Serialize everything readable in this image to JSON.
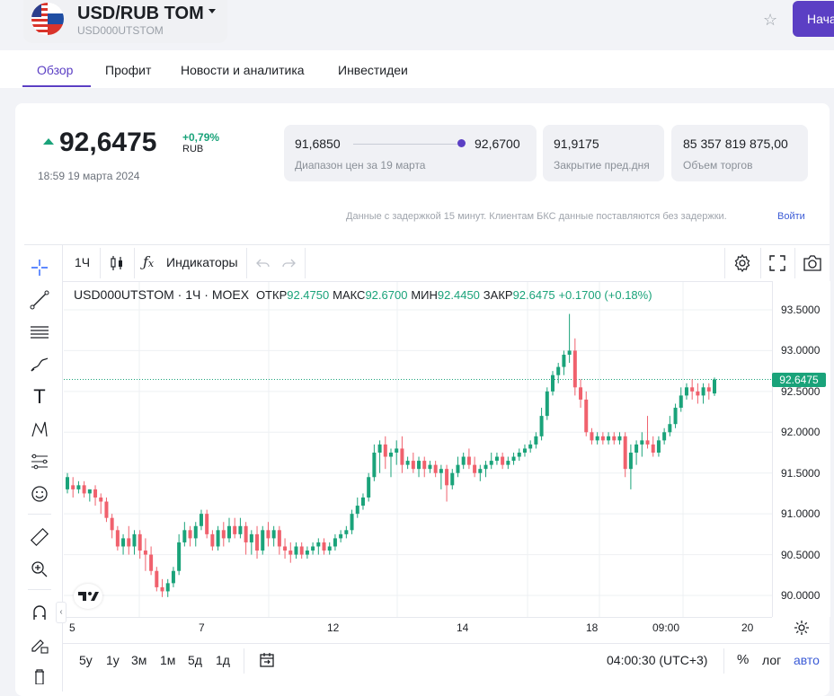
{
  "header": {
    "ticker": "USD/RUB TOM",
    "code": "USD000UTSTOM",
    "start_button": "Начать"
  },
  "tabs": [
    "Обзор",
    "Профит",
    "Новости и аналитика",
    "Инвестидеи"
  ],
  "quote": {
    "price": "92,6475",
    "change": "+0,79%",
    "currency": "RUB",
    "time": "18:59 19 марта 2024",
    "range_low": "91,6850",
    "range_high": "92,6700",
    "range_label": "Диапазон цен за 19 марта",
    "prev_close": "91,9175",
    "prev_close_label": "Закрытие пред.дня",
    "volume": "85 357 819 875,00",
    "volume_label": "Объем торгов"
  },
  "delay_notice": "Данные с задержкой 15 минут. Клиентам БКС данные поставляются без задержки.",
  "delay_link": "Войти",
  "chart_toolbar": {
    "interval": "1Ч",
    "indicators": "Индикаторы"
  },
  "legend": {
    "symbol": "USD000UTSTOM",
    "interval": "1Ч",
    "exchange": "MOEX",
    "open_label": "ОТКР",
    "open": "92.4750",
    "high_label": "МАКС",
    "high": "92.6700",
    "low_label": "МИН",
    "low": "92.4450",
    "close_label": "ЗАКР",
    "close": "92.6475",
    "change": "+0.1700 (+0.18%)"
  },
  "bottom_bar": {
    "periods": [
      "5у",
      "1у",
      "3м",
      "1м",
      "5д",
      "1д"
    ],
    "clock": "04:00:30 (UTC+3)",
    "percent": "%",
    "log": "лог",
    "auto": "авто"
  },
  "colors": {
    "up": "#1aa37a",
    "down": "#f0616d",
    "accent": "#5b3fc4",
    "link": "#3b5bd6"
  },
  "chart_data": {
    "type": "candlestick",
    "y_ticks": [
      "93.5000",
      "93.0000",
      "92.5000",
      "92.0000",
      "91.5000",
      "91.0000",
      "90.5000",
      "90.0000"
    ],
    "x_ticks": [
      "5",
      "7",
      "12",
      "14",
      "18",
      "09:00",
      "20"
    ],
    "ylim": [
      89.8,
      93.75
    ],
    "last_price": "92.6475",
    "candles": [
      [
        91.3,
        91.5,
        91.45,
        91.25
      ],
      [
        91.35,
        91.45,
        91.3,
        91.2
      ],
      [
        91.3,
        91.4,
        91.35,
        91.25
      ],
      [
        91.35,
        91.4,
        91.25,
        91.2
      ],
      [
        91.25,
        91.3,
        91.3,
        91.15
      ],
      [
        91.3,
        91.35,
        91.2,
        91.1
      ],
      [
        91.2,
        91.25,
        91.15,
        91.0
      ],
      [
        91.15,
        91.2,
        90.95,
        90.9
      ],
      [
        90.95,
        91.0,
        90.8,
        90.7
      ],
      [
        90.8,
        90.85,
        90.6,
        90.55
      ],
      [
        90.6,
        90.75,
        90.7,
        90.5
      ],
      [
        90.7,
        90.85,
        90.6,
        90.5
      ],
      [
        90.6,
        90.8,
        90.75,
        90.5
      ],
      [
        90.75,
        90.8,
        90.55,
        90.45
      ],
      [
        90.55,
        90.7,
        90.5,
        90.3
      ],
      [
        90.5,
        90.6,
        90.3,
        90.25
      ],
      [
        90.3,
        90.35,
        90.1,
        90.05
      ],
      [
        90.1,
        90.2,
        90.05,
        89.98
      ],
      [
        90.05,
        90.2,
        90.15,
        89.98
      ],
      [
        90.15,
        90.35,
        90.3,
        90.1
      ],
      [
        90.3,
        90.75,
        90.65,
        90.25
      ],
      [
        90.65,
        90.9,
        90.8,
        90.6
      ],
      [
        90.8,
        90.85,
        90.7,
        90.6
      ],
      [
        90.7,
        90.9,
        90.85,
        90.6
      ],
      [
        90.85,
        91.05,
        91.0,
        90.8
      ],
      [
        91.0,
        91.05,
        90.75,
        90.7
      ],
      [
        90.75,
        90.8,
        90.6,
        90.55
      ],
      [
        90.6,
        90.85,
        90.8,
        90.55
      ],
      [
        90.8,
        90.9,
        90.7,
        90.6
      ],
      [
        90.7,
        90.95,
        90.85,
        90.65
      ],
      [
        90.85,
        90.95,
        90.75,
        90.7
      ],
      [
        90.75,
        90.95,
        90.85,
        90.7
      ],
      [
        90.85,
        90.9,
        90.65,
        90.5
      ],
      [
        90.65,
        90.8,
        90.75,
        90.5
      ],
      [
        90.75,
        90.85,
        90.55,
        90.45
      ],
      [
        90.55,
        90.85,
        90.8,
        90.5
      ],
      [
        90.8,
        90.9,
        90.7,
        90.6
      ],
      [
        90.7,
        90.85,
        90.8,
        90.6
      ],
      [
        90.8,
        90.85,
        90.6,
        90.5
      ],
      [
        90.6,
        90.7,
        90.55,
        90.45
      ],
      [
        90.55,
        90.65,
        90.5,
        90.4
      ],
      [
        90.5,
        90.65,
        90.6,
        90.45
      ],
      [
        90.6,
        90.65,
        90.5,
        90.45
      ],
      [
        90.5,
        90.6,
        90.55,
        90.45
      ],
      [
        90.55,
        90.65,
        90.6,
        90.5
      ],
      [
        90.6,
        90.7,
        90.65,
        90.5
      ],
      [
        90.65,
        90.7,
        90.55,
        90.5
      ],
      [
        90.55,
        90.65,
        90.6,
        90.5
      ],
      [
        90.6,
        90.75,
        90.7,
        90.55
      ],
      [
        90.7,
        90.8,
        90.75,
        90.65
      ],
      [
        90.75,
        90.85,
        90.8,
        90.7
      ],
      [
        90.8,
        91.05,
        91.0,
        90.75
      ],
      [
        91.0,
        91.2,
        91.1,
        90.95
      ],
      [
        91.1,
        91.25,
        91.2,
        91.05
      ],
      [
        91.2,
        91.5,
        91.45,
        91.15
      ],
      [
        91.45,
        91.85,
        91.75,
        91.4
      ],
      [
        91.75,
        91.9,
        91.85,
        91.5
      ],
      [
        91.85,
        91.95,
        91.7,
        91.55
      ],
      [
        91.7,
        91.8,
        91.75,
        91.45
      ],
      [
        91.75,
        91.9,
        91.8,
        91.6
      ],
      [
        91.8,
        91.95,
        91.6,
        91.5
      ],
      [
        91.6,
        91.7,
        91.65,
        91.55
      ],
      [
        91.65,
        91.75,
        91.55,
        91.5
      ],
      [
        91.55,
        91.7,
        91.65,
        91.45
      ],
      [
        91.65,
        91.7,
        91.55,
        91.45
      ],
      [
        91.55,
        91.65,
        91.6,
        91.5
      ],
      [
        91.6,
        91.65,
        91.5,
        91.45
      ],
      [
        91.5,
        91.6,
        91.55,
        91.3
      ],
      [
        91.55,
        91.6,
        91.35,
        91.15
      ],
      [
        91.35,
        91.55,
        91.5,
        91.3
      ],
      [
        91.5,
        91.7,
        91.6,
        91.45
      ],
      [
        91.6,
        91.75,
        91.7,
        91.55
      ],
      [
        91.7,
        91.8,
        91.6,
        91.55
      ],
      [
        91.6,
        91.7,
        91.5,
        91.45
      ],
      [
        91.5,
        91.6,
        91.55,
        91.4
      ],
      [
        91.55,
        91.65,
        91.6,
        91.45
      ],
      [
        91.6,
        91.75,
        91.65,
        91.55
      ],
      [
        91.65,
        91.75,
        91.7,
        91.6
      ],
      [
        91.7,
        91.75,
        91.6,
        91.55
      ],
      [
        91.6,
        91.7,
        91.65,
        91.55
      ],
      [
        91.65,
        91.75,
        91.7,
        91.6
      ],
      [
        91.7,
        91.8,
        91.75,
        91.65
      ],
      [
        91.75,
        91.85,
        91.8,
        91.7
      ],
      [
        91.8,
        91.9,
        91.85,
        91.75
      ],
      [
        91.85,
        92.0,
        91.95,
        91.8
      ],
      [
        91.95,
        92.3,
        92.2,
        91.9
      ],
      [
        92.2,
        92.55,
        92.5,
        92.15
      ],
      [
        92.5,
        92.75,
        92.7,
        92.45
      ],
      [
        92.7,
        92.85,
        92.8,
        92.6
      ],
      [
        92.8,
        93.0,
        92.95,
        92.7
      ],
      [
        92.95,
        93.45,
        93.0,
        92.85
      ],
      [
        93.0,
        93.15,
        92.55,
        92.45
      ],
      [
        92.55,
        92.65,
        92.4,
        92.3
      ],
      [
        92.4,
        92.5,
        92.0,
        91.95
      ],
      [
        92.0,
        92.05,
        91.9,
        91.85
      ],
      [
        91.9,
        92.0,
        91.95,
        91.85
      ],
      [
        91.95,
        92.0,
        91.9,
        91.85
      ],
      [
        91.9,
        92.0,
        91.95,
        91.85
      ],
      [
        91.95,
        92.0,
        91.9,
        91.85
      ],
      [
        91.9,
        92.0,
        91.95,
        91.85
      ],
      [
        91.95,
        92.0,
        91.55,
        91.45
      ],
      [
        91.55,
        91.85,
        91.75,
        91.3
      ],
      [
        91.75,
        91.9,
        91.85,
        91.6
      ],
      [
        91.85,
        92.0,
        91.9,
        91.7
      ],
      [
        91.9,
        92.2,
        91.85,
        91.8
      ],
      [
        91.85,
        91.95,
        91.75,
        91.7
      ],
      [
        91.75,
        91.95,
        91.9,
        91.7
      ],
      [
        91.9,
        92.05,
        92.0,
        91.85
      ],
      [
        92.0,
        92.2,
        92.1,
        91.95
      ],
      [
        92.1,
        92.35,
        92.3,
        92.05
      ],
      [
        92.3,
        92.55,
        92.45,
        92.25
      ],
      [
        92.45,
        92.6,
        92.55,
        92.4
      ],
      [
        92.55,
        92.65,
        92.5,
        92.4
      ],
      [
        92.5,
        92.6,
        92.45,
        92.35
      ],
      [
        92.45,
        92.6,
        92.55,
        92.35
      ],
      [
        92.55,
        92.6,
        92.5,
        92.4
      ],
      [
        92.475,
        92.67,
        92.6475,
        92.445
      ]
    ]
  }
}
